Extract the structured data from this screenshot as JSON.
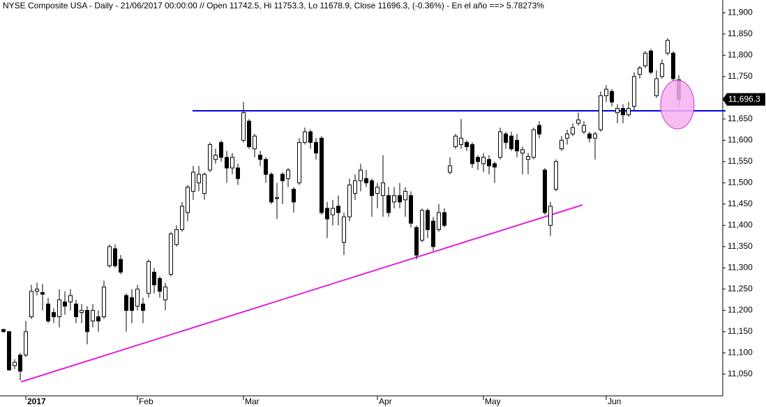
{
  "chart_data": {
    "type": "candlestick",
    "title": "NYSE Composite USA - Daily - 21/06/2017 00:00:00 // Open 11742.5, Hi 11753.3, Lo 11678.9, Close 11696.3, (-0.36%) - En el año ==> 5.78273%",
    "categories": [
      null,
      null,
      null,
      null,
      "2017",
      null,
      null,
      null,
      null,
      null,
      null,
      null,
      null,
      null,
      null,
      null,
      null,
      null,
      null,
      null,
      null,
      null,
      null,
      null,
      "Feb",
      null,
      null,
      null,
      null,
      null,
      null,
      null,
      null,
      null,
      null,
      null,
      null,
      null,
      null,
      null,
      null,
      null,
      null,
      "Mar",
      null,
      null,
      null,
      null,
      null,
      null,
      null,
      null,
      null,
      null,
      null,
      null,
      null,
      null,
      null,
      null,
      null,
      null,
      null,
      null,
      null,
      null,
      null,
      "Apr",
      null,
      null,
      null,
      null,
      null,
      null,
      null,
      null,
      null,
      null,
      null,
      null,
      null,
      null,
      null,
      null,
      null,
      null,
      "May",
      null,
      null,
      null,
      null,
      null,
      null,
      null,
      null,
      null,
      null,
      null,
      null,
      null,
      null,
      null,
      null,
      null,
      null,
      null,
      null,
      null,
      "Jun",
      null,
      null,
      null,
      null,
      null,
      null,
      null,
      null,
      null,
      null,
      null,
      null,
      null
    ],
    "open": [
      11155,
      11150,
      11070,
      11095,
      11095,
      11185,
      11245,
      11242,
      11215,
      11195,
      11185,
      11220,
      11220,
      11215,
      11195,
      11200,
      11175,
      11185,
      11185,
      11305,
      11345,
      11320,
      11235,
      11230,
      11210,
      11215,
      11240,
      11290,
      11275,
      11225,
      11285,
      11355,
      11390,
      11430,
      11480,
      11500,
      11475,
      11530,
      11555,
      11595,
      11560,
      11535,
      11535,
      11600,
      11645,
      11580,
      11565,
      11555,
      11520,
      11463,
      11520,
      11510,
      11485,
      11500,
      11595,
      11620,
      11595,
      11605,
      11440,
      11425,
      11445,
      11360,
      11420,
      11475,
      11505,
      11510,
      11505,
      11475,
      11470,
      11470,
      11455,
      11470,
      11460,
      11470,
      11395,
      11365,
      11435,
      11410,
      11390,
      11430,
      11525,
      11585,
      11590,
      11595,
      11590,
      11560,
      11545,
      11555,
      11545,
      11560,
      11615,
      11610,
      11600,
      11570,
      11555,
      11560,
      11635,
      11530,
      11400,
      11485,
      11580,
      11605,
      11615,
      11640,
      11620,
      11615,
      11605,
      11625,
      11705,
      11715,
      11665,
      11675,
      11660,
      11680,
      11755,
      11775,
      11810,
      11705,
      11750,
      11805,
      11805,
      11742.5
    ],
    "high": [
      11157,
      11152,
      11085,
      11100,
      11175,
      11260,
      11265,
      11262,
      11230,
      11205,
      11250,
      11245,
      11250,
      11225,
      11215,
      11210,
      11215,
      11200,
      11270,
      11355,
      11355,
      11330,
      11240,
      11250,
      11260,
      11230,
      11320,
      11300,
      11280,
      11265,
      11385,
      11400,
      11455,
      11495,
      11540,
      11540,
      11525,
      11595,
      11580,
      11600,
      11575,
      11570,
      11545,
      11690,
      11650,
      11615,
      11575,
      11560,
      11525,
      11500,
      11525,
      11535,
      11490,
      11605,
      11630,
      11625,
      11605,
      11610,
      11455,
      11460,
      11470,
      11430,
      11510,
      11520,
      11545,
      11530,
      11510,
      11500,
      11565,
      11490,
      11490,
      11500,
      11490,
      11480,
      11400,
      11440,
      11440,
      11420,
      11450,
      11440,
      11560,
      11615,
      11650,
      11600,
      11595,
      11565,
      11570,
      11565,
      11550,
      11630,
      11620,
      11620,
      11615,
      11585,
      11570,
      11630,
      11645,
      11535,
      11455,
      11555,
      11610,
      11625,
      11640,
      11665,
      11645,
      11620,
      11620,
      11715,
      11730,
      11720,
      11685,
      11685,
      11690,
      11760,
      11775,
      11810,
      11815,
      11765,
      11790,
      11840,
      11810,
      11753.3
    ],
    "low": [
      11148,
      11058,
      11062,
      11035,
      11090,
      11180,
      11235,
      11200,
      11170,
      11170,
      11160,
      11190,
      11200,
      11170,
      11170,
      11120,
      11160,
      11150,
      11180,
      11300,
      11300,
      11285,
      11150,
      11170,
      11200,
      11170,
      11230,
      11240,
      11230,
      11200,
      11280,
      11350,
      11385,
      11410,
      11460,
      11480,
      11460,
      11525,
      11545,
      11550,
      11500,
      11520,
      11495,
      11595,
      11580,
      11560,
      11540,
      11500,
      11450,
      11415,
      11450,
      11490,
      11430,
      11495,
      11590,
      11580,
      11555,
      11425,
      11370,
      11400,
      11400,
      11330,
      11410,
      11460,
      11480,
      11490,
      11420,
      11440,
      11420,
      11420,
      11440,
      11440,
      11420,
      11395,
      11320,
      11360,
      11370,
      11340,
      11385,
      11395,
      11520,
      11580,
      11580,
      11575,
      11535,
      11530,
      11525,
      11520,
      11500,
      11555,
      11580,
      11575,
      11560,
      11520,
      11520,
      11555,
      11605,
      11425,
      11375,
      11480,
      11575,
      11590,
      11610,
      11635,
      11615,
      11595,
      11555,
      11620,
      11690,
      11680,
      11640,
      11640,
      11655,
      11670,
      11745,
      11770,
      11755,
      11700,
      11745,
      11800,
      11740,
      11678.9
    ],
    "close": [
      11150,
      11060,
      11078,
      11057,
      11150,
      11245,
      11250,
      11238,
      11175,
      11185,
      11225,
      11210,
      11235,
      11185,
      11200,
      11150,
      11200,
      11175,
      11255,
      11350,
      11305,
      11290,
      11200,
      11200,
      11250,
      11200,
      11315,
      11260,
      11245,
      11255,
      11380,
      11390,
      11445,
      11490,
      11525,
      11520,
      11520,
      11590,
      11565,
      11560,
      11535,
      11560,
      11510,
      11665,
      11585,
      11610,
      11555,
      11520,
      11455,
      11465,
      11505,
      11530,
      11455,
      11595,
      11620,
      11595,
      11570,
      11430,
      11415,
      11440,
      11430,
      11420,
      11495,
      11505,
      11530,
      11500,
      11470,
      11490,
      11500,
      11430,
      11470,
      11455,
      11480,
      11405,
      11330,
      11435,
      11390,
      11350,
      11430,
      11400,
      11540,
      11610,
      11605,
      11585,
      11545,
      11550,
      11560,
      11540,
      11537,
      11620,
      11595,
      11580,
      11575,
      11578,
      11562,
      11625,
      11615,
      11430,
      11445,
      11550,
      11600,
      11615,
      11630,
      11648,
      11635,
      11605,
      11615,
      11705,
      11720,
      11690,
      11675,
      11660,
      11675,
      11750,
      11770,
      11805,
      11760,
      11745,
      11780,
      11835,
      11745,
      11696.3
    ],
    "ylim": [
      10999,
      11930
    ],
    "yticks": [
      {
        "value": 11050,
        "label": "11,050"
      },
      {
        "value": 11100,
        "label": "11,100"
      },
      {
        "value": 11150,
        "label": "11,150"
      },
      {
        "value": 11200,
        "label": "11,200"
      },
      {
        "value": 11250,
        "label": "11,250"
      },
      {
        "value": 11300,
        "label": "11,300"
      },
      {
        "value": 11350,
        "label": "11,350"
      },
      {
        "value": 11400,
        "label": "11,400"
      },
      {
        "value": 11450,
        "label": "11,450"
      },
      {
        "value": 11500,
        "label": "11,500"
      },
      {
        "value": 11550,
        "label": "11,550"
      },
      {
        "value": 11600,
        "label": "11,600"
      },
      {
        "value": 11650,
        "label": "11,650"
      },
      {
        "value": 11700,
        "label": "11,700"
      },
      {
        "value": 11750,
        "label": "11,750"
      },
      {
        "value": 11800,
        "label": "11,800"
      },
      {
        "value": 11850,
        "label": "11,850"
      },
      {
        "value": 11900,
        "label": "11,900"
      }
    ],
    "last_price": {
      "value": 11696.3,
      "label": "11,696.3"
    },
    "up_color": "#ffffff",
    "down_color": "#000000"
  }
}
